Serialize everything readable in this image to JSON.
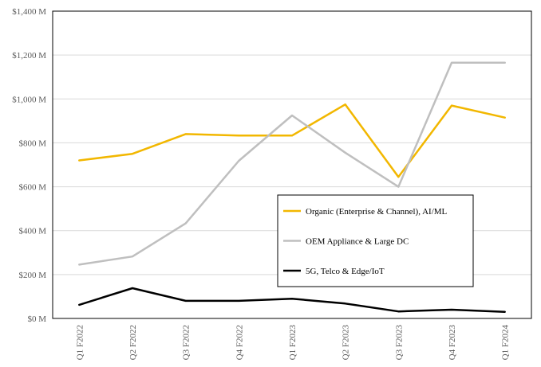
{
  "chart_data": {
    "type": "line",
    "categories": [
      "Q1 F2022",
      "Q2 F2022",
      "Q3 F2022",
      "Q4 F2022",
      "Q1 F2023",
      "Q2 F2023",
      "Q3 F2023",
      "Q4 F2023",
      "Q1 F2024"
    ],
    "series": [
      {
        "name": "Organic (Enterprise & Channel), AI/ML",
        "color": "#F2B700",
        "values": [
          720,
          750,
          840,
          833,
          833,
          975,
          645,
          970,
          915
        ]
      },
      {
        "name": "OEM Appliance & Large DC",
        "color": "#BFBFBF",
        "values": [
          245,
          282,
          433,
          718,
          925,
          755,
          600,
          1165,
          1165
        ]
      },
      {
        "name": "5G, Telco & Edge/IoT",
        "color": "#000000",
        "values": [
          62,
          138,
          80,
          80,
          90,
          68,
          32,
          40,
          30
        ]
      }
    ],
    "y_ticks": [
      "$0 M",
      "$200 M",
      "$400 M",
      "$600 M",
      "$800 M",
      "$1,000 M",
      "$1,200 M",
      "$1,400 M"
    ],
    "ylim": [
      0,
      1400
    ],
    "grid": true,
    "legend_placement": "center-right"
  }
}
